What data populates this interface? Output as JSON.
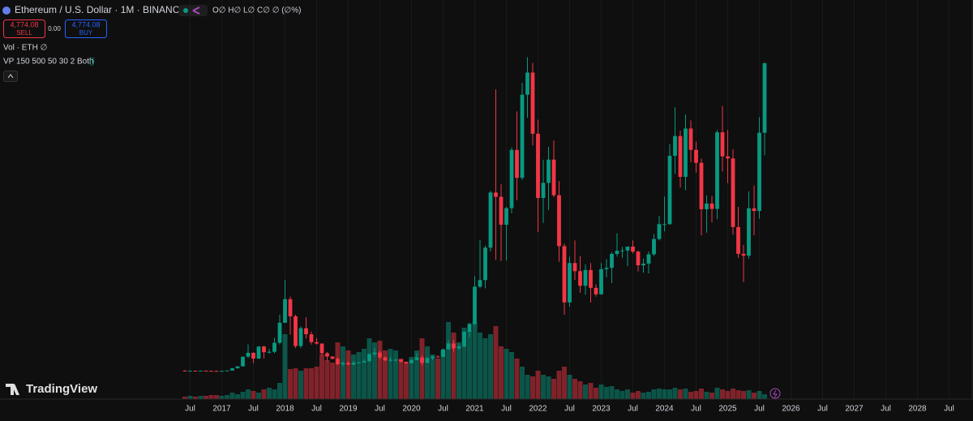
{
  "header": {
    "title": "Ethereum / U.S. Dollar · 1M · BINANCE",
    "ohlc": "O∅ H∅ L∅ C∅ ∅ (∅%)",
    "sell_price": "4,774.08",
    "sell": "SELL",
    "spread": "0.00",
    "buy_price": "4,774.08",
    "buy": "BUY",
    "vol": "Vol · ETH  ∅",
    "vp": "VP 150 500 50 30 2 Both",
    "brand": "TradingView"
  },
  "chart_data": {
    "type": "candlestick",
    "x": [
      "2016-06",
      "2016-07",
      "2016-08",
      "2016-09",
      "2016-10",
      "2016-11",
      "2016-12",
      "2017-01",
      "2017-02",
      "2017-03",
      "2017-04",
      "2017-05",
      "2017-06",
      "2017-07",
      "2017-08",
      "2017-09",
      "2017-10",
      "2017-11",
      "2017-12",
      "2018-01",
      "2018-02",
      "2018-03",
      "2018-04",
      "2018-05",
      "2018-06",
      "2018-07",
      "2018-08",
      "2018-09",
      "2018-10",
      "2018-11",
      "2018-12",
      "2019-01",
      "2019-02",
      "2019-03",
      "2019-04",
      "2019-05",
      "2019-06",
      "2019-07",
      "2019-08",
      "2019-09",
      "2019-10",
      "2019-11",
      "2019-12",
      "2020-01",
      "2020-02",
      "2020-03",
      "2020-04",
      "2020-05",
      "2020-06",
      "2020-07",
      "2020-08",
      "2020-09",
      "2020-10",
      "2020-11",
      "2020-12",
      "2021-01",
      "2021-02",
      "2021-03",
      "2021-04",
      "2021-05",
      "2021-06",
      "2021-07",
      "2021-08",
      "2021-09",
      "2021-10",
      "2021-11",
      "2021-12",
      "2022-01",
      "2022-02",
      "2022-03",
      "2022-04",
      "2022-05",
      "2022-06",
      "2022-07",
      "2022-08",
      "2022-09",
      "2022-10",
      "2022-11",
      "2022-12",
      "2023-01",
      "2023-02",
      "2023-03",
      "2023-04",
      "2023-05",
      "2023-06",
      "2023-07",
      "2023-08",
      "2023-09",
      "2023-10",
      "2023-11",
      "2023-12",
      "2024-01",
      "2024-02",
      "2024-03",
      "2024-04",
      "2024-05",
      "2024-06",
      "2024-07",
      "2024-08",
      "2024-09",
      "2024-10",
      "2024-11",
      "2024-12",
      "2025-01",
      "2025-02",
      "2025-03",
      "2025-04",
      "2025-05",
      "2025-06",
      "2025-07",
      "2025-08"
    ],
    "open": [
      14,
      12,
      12.5,
      11.5,
      13,
      11,
      8.5,
      8,
      10.7,
      16,
      50,
      80,
      230,
      290,
      200,
      387,
      300,
      305,
      445,
      755,
      1120,
      855,
      395,
      670,
      577,
      455,
      433,
      283,
      232,
      197,
      113,
      133,
      107,
      136,
      141,
      160,
      268,
      293,
      218,
      172,
      180,
      182,
      151,
      129,
      179,
      218,
      133,
      207,
      231,
      225,
      346,
      434,
      359,
      386,
      616,
      737,
      1314,
      1416,
      1918,
      2772,
      2706,
      2274,
      2530,
      3432,
      3000,
      4287,
      4630,
      3683,
      2688,
      2922,
      3282,
      2730,
      1942,
      1070,
      1680,
      1554,
      1328,
      1572,
      1296,
      1196,
      1585,
      1605,
      1822,
      1870,
      1874,
      1934,
      1857,
      1645,
      1671,
      1815,
      2052,
      2282,
      2283,
      3340,
      3647,
      3015,
      3763,
      3433,
      3232,
      2513,
      2602,
      2518,
      3705,
      3332,
      3300,
      2237,
      1822,
      1794,
      2528,
      2486,
      3698
    ],
    "high": [
      21,
      15,
      12.8,
      14.5,
      13.5,
      11.5,
      9,
      11.3,
      16.5,
      55,
      82,
      233,
      420,
      296,
      394,
      400,
      349,
      522,
      880,
      1420,
      1160,
      880,
      700,
      840,
      620,
      520,
      435,
      300,
      236,
      220,
      155,
      160,
      165,
      147,
      185,
      286,
      362,
      320,
      236,
      224,
      198,
      193,
      153,
      183,
      288,
      253,
      228,
      245,
      252,
      347,
      490,
      488,
      420,
      622,
      755,
      1475,
      2040,
      1950,
      2800,
      4370,
      2900,
      2550,
      3470,
      4030,
      4470,
      4870,
      4780,
      3900,
      3280,
      3480,
      3580,
      2950,
      1980,
      1780,
      2030,
      1790,
      1660,
      1680,
      1350,
      1680,
      1740,
      1850,
      2140,
      1930,
      1940,
      2030,
      1870,
      1750,
      1860,
      2130,
      2410,
      2710,
      3520,
      4090,
      3730,
      3980,
      3890,
      3560,
      3300,
      2730,
      2720,
      3740,
      4110,
      3740,
      3440,
      2550,
      1960,
      2790,
      2880,
      3940,
      4790
    ],
    "low": [
      10,
      10,
      10.3,
      11,
      10.6,
      8.2,
      5.9,
      7.9,
      10.3,
      16,
      43,
      77,
      210,
      130,
      195,
      200,
      279,
      284,
      420,
      755,
      570,
      365,
      365,
      510,
      418,
      418,
      250,
      167,
      190,
      100,
      82,
      102,
      102,
      126,
      140,
      152,
      230,
      190,
      162,
      155,
      155,
      140,
      117,
      127,
      172,
      90,
      130,
      177,
      216,
      224,
      335,
      308,
      335,
      374,
      530,
      715,
      1290,
      1290,
      1860,
      1730,
      1710,
      1720,
      2450,
      2650,
      2970,
      3930,
      3500,
      2160,
      2300,
      2500,
      2700,
      1700,
      880,
      1000,
      1420,
      1220,
      1190,
      1070,
      1160,
      1190,
      1460,
      1370,
      1780,
      1760,
      1630,
      1830,
      1550,
      1530,
      1520,
      1790,
      2030,
      2170,
      2270,
      3060,
      2850,
      2810,
      3240,
      3080,
      2110,
      2150,
      2310,
      2360,
      3100,
      2920,
      2120,
      1760,
      1385,
      1750,
      2110,
      2370,
      3350
    ],
    "close": [
      12,
      12.5,
      11.5,
      13,
      11,
      8.5,
      8,
      10.7,
      16,
      50,
      80,
      230,
      290,
      200,
      387,
      300,
      305,
      445,
      755,
      1120,
      855,
      395,
      670,
      577,
      455,
      433,
      283,
      232,
      197,
      113,
      133,
      107,
      136,
      141,
      160,
      268,
      293,
      218,
      172,
      180,
      182,
      151,
      129,
      179,
      218,
      133,
      207,
      231,
      225,
      346,
      434,
      359,
      386,
      616,
      737,
      1314,
      1416,
      1918,
      2772,
      2706,
      2274,
      2530,
      3432,
      3000,
      4287,
      4630,
      3683,
      2688,
      2922,
      3282,
      2730,
      1942,
      1070,
      1680,
      1554,
      1328,
      1572,
      1296,
      1196,
      1585,
      1605,
      1822,
      1870,
      1874,
      1934,
      1857,
      1645,
      1671,
      1815,
      2052,
      2282,
      2283,
      3340,
      3647,
      3015,
      3763,
      3433,
      3232,
      2513,
      2602,
      2518,
      3705,
      3332,
      3300,
      2237,
      1822,
      1794,
      2528,
      2486,
      3698,
      4774
    ],
    "volume": [
      3,
      4,
      3,
      4,
      4,
      5,
      5,
      4,
      5,
      8,
      6,
      9,
      12,
      10,
      8,
      12,
      14,
      12,
      20,
      80,
      37,
      38,
      35,
      38,
      38,
      40,
      55,
      48,
      45,
      70,
      65,
      60,
      55,
      58,
      62,
      75,
      70,
      72,
      60,
      62,
      60,
      50,
      45,
      52,
      60,
      75,
      65,
      55,
      50,
      60,
      95,
      82,
      70,
      88,
      85,
      95,
      82,
      75,
      80,
      90,
      65,
      62,
      58,
      50,
      40,
      30,
      28,
      35,
      30,
      28,
      25,
      35,
      40,
      30,
      25,
      22,
      18,
      20,
      14,
      18,
      15,
      16,
      12,
      10,
      12,
      8,
      10,
      8,
      9,
      12,
      13,
      12,
      12,
      14,
      12,
      13,
      9,
      10,
      13,
      9,
      8,
      14,
      12,
      10,
      13,
      11,
      10,
      11,
      8,
      10,
      6
    ],
    "up_color": "#089981",
    "down_color": "#f23645",
    "ylim": [
      0,
      5000
    ],
    "vlim": [
      0,
      100
    ],
    "xticks": [
      {
        "value": "2016-07",
        "label": "Jul"
      },
      {
        "value": "2017-01",
        "label": "2017"
      },
      {
        "value": "2017-07",
        "label": "Jul"
      },
      {
        "value": "2018-01",
        "label": "2018"
      },
      {
        "value": "2018-07",
        "label": "Jul"
      },
      {
        "value": "2019-01",
        "label": "2019"
      },
      {
        "value": "2019-07",
        "label": "Jul"
      },
      {
        "value": "2020-01",
        "label": "2020"
      },
      {
        "value": "2020-07",
        "label": "Jul"
      },
      {
        "value": "2021-01",
        "label": "2021"
      },
      {
        "value": "2021-07",
        "label": "Jul"
      },
      {
        "value": "2022-01",
        "label": "2022"
      },
      {
        "value": "2022-07",
        "label": "Jul"
      },
      {
        "value": "2023-01",
        "label": "2023"
      },
      {
        "value": "2023-07",
        "label": "Jul"
      },
      {
        "value": "2024-01",
        "label": "2024"
      },
      {
        "value": "2024-07",
        "label": "Jul"
      },
      {
        "value": "2025-01",
        "label": "2025"
      },
      {
        "value": "2025-07",
        "label": "Jul"
      },
      {
        "value": "2026-01",
        "label": "2026"
      },
      {
        "value": "2026-07",
        "label": "Jul"
      },
      {
        "value": "2027-01",
        "label": "2027"
      },
      {
        "value": "2027-07",
        "label": "Jul"
      },
      {
        "value": "2028-01",
        "label": "2028"
      },
      {
        "value": "2028-07",
        "label": "Jul"
      }
    ],
    "grid": true
  }
}
